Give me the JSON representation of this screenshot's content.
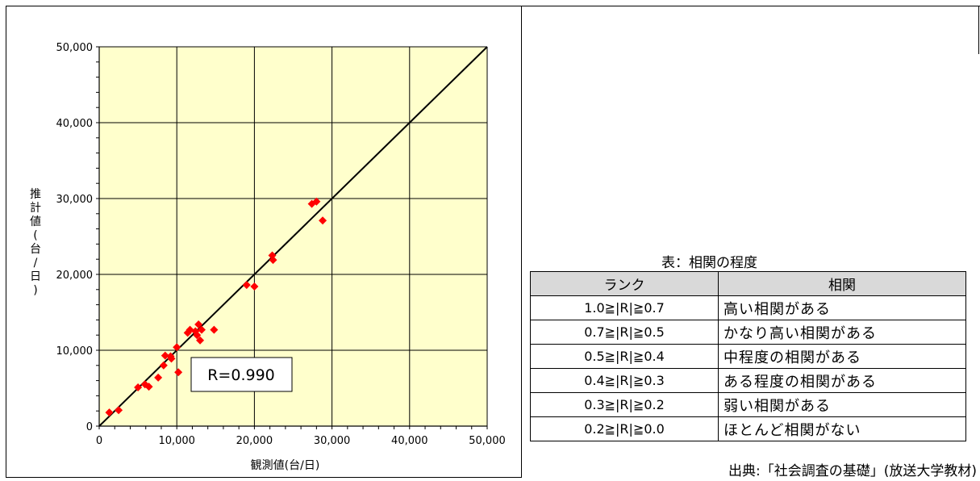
{
  "chart_data": {
    "type": "scatter",
    "title": "",
    "xlabel": "観測値(台/日)",
    "ylabel": "推計値(台/日)",
    "xlim": [
      0,
      50000
    ],
    "ylim": [
      0,
      50000
    ],
    "x_ticks": [
      "0",
      "10,000",
      "20,000",
      "30,000",
      "40,000",
      "50,000"
    ],
    "y_ticks": [
      "0",
      "10,000",
      "20,000",
      "30,000",
      "40,000",
      "50,000"
    ],
    "tick_values": [
      0,
      10000,
      20000,
      30000,
      40000,
      50000
    ],
    "grid": true,
    "reference_line": "y = x",
    "annotation": "R=0.990",
    "plot_background": "#ffffcc",
    "marker_color": "#ff0000",
    "series": [
      {
        "points": [
          [
            1300,
            1800
          ],
          [
            2500,
            2100
          ],
          [
            5000,
            5100
          ],
          [
            5900,
            5500
          ],
          [
            6400,
            5200
          ],
          [
            7600,
            6400
          ],
          [
            8300,
            8000
          ],
          [
            8500,
            9300
          ],
          [
            9200,
            9200
          ],
          [
            9300,
            8900
          ],
          [
            10000,
            10400
          ],
          [
            10200,
            7100
          ],
          [
            11400,
            12300
          ],
          [
            11700,
            12700
          ],
          [
            12400,
            12500
          ],
          [
            12600,
            12000
          ],
          [
            12800,
            13400
          ],
          [
            13000,
            11300
          ],
          [
            13200,
            12700
          ],
          [
            14800,
            12700
          ],
          [
            19000,
            18600
          ],
          [
            20000,
            18400
          ],
          [
            22300,
            22500
          ],
          [
            22400,
            21900
          ],
          [
            27400,
            29300
          ],
          [
            28000,
            29600
          ],
          [
            28800,
            27100
          ]
        ]
      }
    ]
  },
  "table": {
    "title": "表：相関の程度",
    "headers": [
      "ランク",
      "相関"
    ],
    "rows": [
      {
        "rank": "1.0≧|R|≧0.7",
        "label": "高い相関がある"
      },
      {
        "rank": "0.7≧|R|≧0.5",
        "label": "かなり高い相関がある"
      },
      {
        "rank": "0.5≧|R|≧0.4",
        "label": "中程度の相関がある"
      },
      {
        "rank": "0.4≧|R|≧0.3",
        "label": "ある程度の相関がある"
      },
      {
        "rank": "0.3≧|R|≧0.2",
        "label": "弱い相関がある"
      },
      {
        "rank": "0.2≧|R|≧0.0",
        "label": "ほとんど相関がない"
      }
    ]
  },
  "source": "出典:「社会調査の基礎」(放送大学教材)"
}
